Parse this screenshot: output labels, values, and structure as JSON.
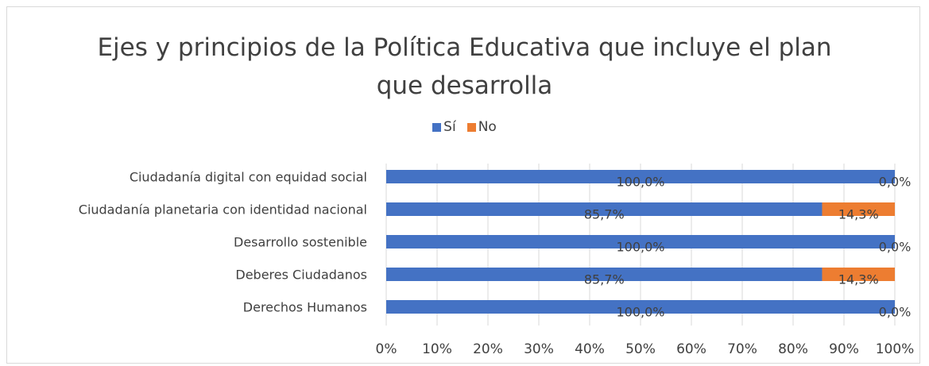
{
  "chart_data": {
    "type": "bar",
    "orientation": "horizontal",
    "stacked": "100%",
    "title": "Ejes y principios de la Política Educativa que incluye el plan que desarrolla",
    "title_lines": [
      "Ejes y principios de la Política Educativa que incluye el plan",
      "que desarrolla"
    ],
    "categories": [
      "Ciudadanía digital con equidad social",
      "Ciudadanía planetaria con identidad nacional",
      "Desarrollo sostenible",
      "Deberes Ciudadanos",
      "Derechos Humanos"
    ],
    "series": [
      {
        "name": "Sí",
        "color": "#4472c4",
        "values": [
          100.0,
          85.7,
          100.0,
          85.7,
          100.0
        ],
        "labels": [
          "100,0%",
          "85,7%",
          "100,0%",
          "85,7%",
          "100,0%"
        ]
      },
      {
        "name": "No",
        "color": "#ed7d31",
        "values": [
          0.0,
          14.3,
          0.0,
          14.3,
          0.0
        ],
        "labels": [
          "0,0%",
          "14,3%",
          "0,0%",
          "14,3%",
          "0,0%"
        ]
      }
    ],
    "x_ticks": [
      "0%",
      "10%",
      "20%",
      "30%",
      "40%",
      "50%",
      "60%",
      "70%",
      "80%",
      "90%",
      "100%"
    ],
    "xlim": [
      0,
      100
    ],
    "grid": "vertical",
    "legend_position": "top"
  }
}
